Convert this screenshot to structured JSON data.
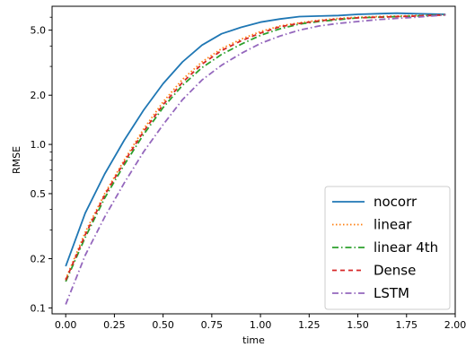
{
  "chart_data": {
    "type": "line",
    "title": "",
    "xlabel": "time",
    "ylabel": "RMSE",
    "xlim": [
      -0.07,
      2.0
    ],
    "ylim": [
      0.092,
      7.0
    ],
    "yscale": "log",
    "grid": false,
    "legend_position": "lower-right",
    "x_ticks": [
      0.0,
      0.25,
      0.5,
      0.75,
      1.0,
      1.25,
      1.5,
      1.75,
      2.0
    ],
    "x_tick_labels": [
      "0.00",
      "0.25",
      "0.50",
      "0.75",
      "1.00",
      "1.25",
      "1.50",
      "1.75",
      "2.00"
    ],
    "y_ticks": [
      0.1,
      0.2,
      0.5,
      1.0,
      2.0,
      5.0
    ],
    "y_tick_labels": [
      "0.1",
      "0.2",
      "0.5",
      "1.0",
      "2.0",
      "5.0"
    ],
    "x": [
      0.0,
      0.1,
      0.2,
      0.3,
      0.4,
      0.5,
      0.6,
      0.7,
      0.8,
      0.9,
      1.0,
      1.1,
      1.2,
      1.3,
      1.4,
      1.5,
      1.6,
      1.7,
      1.8,
      1.95
    ],
    "series": [
      {
        "name": "nocorr",
        "color": "#1f77b4",
        "dash": "solid",
        "values": [
          0.18,
          0.38,
          0.66,
          1.06,
          1.62,
          2.35,
          3.2,
          4.05,
          4.75,
          5.2,
          5.6,
          5.85,
          6.05,
          6.1,
          6.15,
          6.25,
          6.3,
          6.35,
          6.3,
          6.25
        ]
      },
      {
        "name": "linear",
        "color": "#ff7f0e",
        "dash": "dotted",
        "values": [
          0.15,
          0.29,
          0.5,
          0.8,
          1.24,
          1.82,
          2.5,
          3.2,
          3.85,
          4.4,
          4.9,
          5.3,
          5.55,
          5.75,
          5.9,
          6.0,
          6.05,
          6.1,
          6.15,
          6.2
        ]
      },
      {
        "name": "linear 4th",
        "color": "#2ca02c",
        "dash": "dashdot",
        "values": [
          0.145,
          0.27,
          0.47,
          0.75,
          1.15,
          1.68,
          2.3,
          2.95,
          3.55,
          4.1,
          4.65,
          5.1,
          5.45,
          5.65,
          5.8,
          5.95,
          6.0,
          6.05,
          6.1,
          6.2
        ]
      },
      {
        "name": "Dense",
        "color": "#d62728",
        "dash": "dashed",
        "values": [
          0.148,
          0.28,
          0.49,
          0.78,
          1.2,
          1.75,
          2.4,
          3.1,
          3.75,
          4.3,
          4.8,
          5.25,
          5.5,
          5.7,
          5.85,
          5.95,
          6.0,
          6.05,
          6.1,
          6.2
        ]
      },
      {
        "name": "LSTM",
        "color": "#9467bd",
        "dash": "dashdot",
        "values": [
          0.105,
          0.21,
          0.36,
          0.58,
          0.9,
          1.32,
          1.88,
          2.48,
          3.05,
          3.6,
          4.15,
          4.6,
          5.0,
          5.3,
          5.5,
          5.65,
          5.8,
          5.9,
          6.0,
          6.2
        ]
      }
    ]
  }
}
